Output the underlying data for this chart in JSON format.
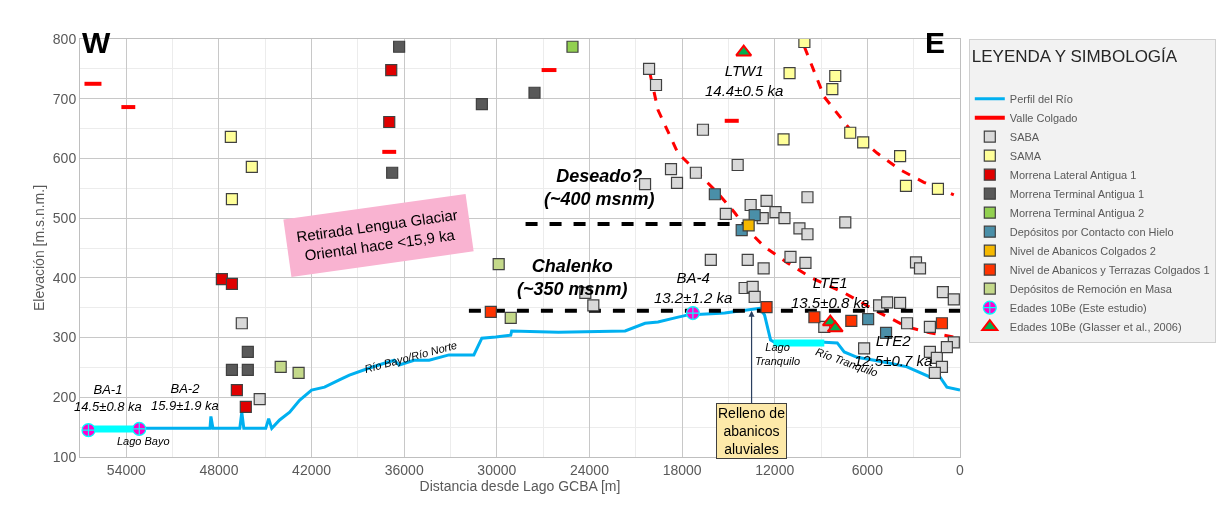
{
  "chart_data": {
    "type": "scatter",
    "xlabel": "Distancia desde Lago GCBA [m]",
    "ylabel": "Elevación [m.s.n.m.]",
    "legend_title": "LEYENDA Y SIMBOLOGÍA",
    "xlim": [
      57000,
      0
    ],
    "xticks": [
      54000,
      48000,
      42000,
      36000,
      30000,
      24000,
      18000,
      12000,
      6000,
      0
    ],
    "ylim": [
      100,
      800
    ],
    "yticks": [
      100,
      200,
      300,
      400,
      500,
      600,
      700,
      800
    ],
    "grid": true,
    "legend": "right",
    "series": [
      {
        "name": "Perfil del Río",
        "type": "line",
        "color": "#00b0f0",
        "marker": "none",
        "line_style": "solid",
        "x": [
          53160,
          48580,
          48520,
          48390,
          46650,
          46520,
          46390,
          44970,
          44780,
          44580,
          44070,
          43420,
          42780,
          42000,
          41160,
          40200,
          39550,
          38260,
          37290,
          36650,
          36330,
          35360,
          34390,
          33100,
          31490,
          30970,
          30070,
          29100,
          29040,
          26010,
          21690,
          20400,
          19560,
          18460,
          17620,
          15240,
          12980,
          12660,
          12270,
          12010,
          8790,
          7950,
          7500,
          6660,
          5560,
          4530,
          3430,
          1950,
          1300,
          850,
          0
        ],
        "values": [
          148,
          148,
          168,
          148,
          148,
          175,
          148,
          148,
          164,
          148,
          162,
          175,
          195,
          212,
          217,
          229,
          237,
          249,
          257,
          262,
          254,
          262,
          262,
          271,
          271,
          299,
          301,
          304,
          311,
          309,
          311,
          324,
          326,
          333,
          338,
          341,
          349,
          338,
          296,
          292,
          292,
          291,
          276,
          267,
          262,
          257,
          251,
          234,
          234,
          217,
          212
        ]
      },
      {
        "type": "line",
        "color": "#00ffff",
        "marker": "none",
        "line_style": "solid",
        "x": [
          56450,
          53160
        ],
        "values": [
          147,
          147
        ]
      },
      {
        "type": "line",
        "color": "#00ffff",
        "marker": "none",
        "line_style": "solid",
        "x": [
          12080,
          8790
        ],
        "values": [
          291,
          291
        ]
      },
      {
        "name": "Valle Colgado",
        "type": "line",
        "color": "#ff0000",
        "marker": "none",
        "line_style": "solid",
        "x": [
          56710,
          55610,
          null,
          54320,
          53420,
          null,
          37420,
          36520,
          null,
          27100,
          26140,
          null,
          15240,
          14330
        ],
        "values": [
          725,
          725,
          null,
          686,
          686,
          null,
          611,
          611,
          null,
          748,
          748,
          null,
          663,
          663
        ]
      },
      {
        "type": "line",
        "color": "#ff0000",
        "marker": "none",
        "line_style": "dashed",
        "x": [
          20070,
          19560,
          18270,
          16980,
          15690,
          14590,
          13750,
          12660,
          11170,
          9690,
          7500,
          5170,
          3430,
          1950,
          400
        ],
        "values": [
          741,
          681,
          609,
          576,
          542,
          509,
          480,
          452,
          425,
          401,
          375,
          341,
          318,
          308,
          301
        ]
      },
      {
        "type": "line",
        "color": "#ff0000",
        "marker": "none",
        "line_style": "dashed",
        "x": [
          10080,
          8790,
          7110,
          5370,
          3880,
          2340,
          400
        ],
        "values": [
          787,
          703,
          648,
          609,
          581,
          560,
          539
        ]
      },
      {
        "type": "line",
        "color": "#000000",
        "marker": "none",
        "line_style": "dashed",
        "x": [
          28140,
          13880
        ],
        "values": [
          490,
          490
        ]
      },
      {
        "type": "line",
        "color": "#000000",
        "marker": "none",
        "line_style": "dashed",
        "x": [
          31810,
          0
        ],
        "values": [
          345,
          345
        ]
      },
      {
        "name": "SABA",
        "color": "#d9d9d9",
        "marker": "square",
        "x": [
          46520,
          45360,
          20140,
          19690,
          16650,
          18720,
          17110,
          18330,
          14400,
          20400,
          13560,
          12530,
          15170,
          11950,
          11370,
          9880,
          7430,
          10400,
          9880,
          12780,
          16140,
          13750,
          12720,
          10980,
          10010,
          13950,
          13430,
          13300,
          24270,
          23750,
          2850,
          2590,
          1110,
          400,
          5240,
          4720,
          3880,
          8790,
          3430,
          1950,
          400,
          1950,
          1500,
          1170,
          1630,
          6210,
          850
        ],
        "values": [
          324,
          197,
          750,
          723,
          648,
          582,
          576,
          559,
          589,
          557,
          522,
          529,
          507,
          510,
          500,
          535,
          493,
          483,
          473,
          500,
          430,
          430,
          416,
          435,
          425,
          383,
          385,
          368,
          375,
          354,
          426,
          416,
          376,
          364,
          354,
          359,
          358,
          318,
          324,
          318,
          292,
          276,
          266,
          251,
          241,
          282,
          284
        ]
      },
      {
        "name": "SAMA",
        "color": "#ffff99",
        "marker": "square",
        "x": [
          47230,
          45870,
          47160,
          10080,
          11040,
          8080,
          8270,
          11430,
          7110,
          6270,
          3880,
          3500,
          1430
        ],
        "values": [
          636,
          586,
          532,
          795,
          743,
          738,
          716,
          632,
          643,
          627,
          604,
          554,
          549
        ]
      },
      {
        "name": "Morrena Lateral Antigua 1",
        "color": "#e00000",
        "marker": "square",
        "x": [
          36840,
          36970,
          47810,
          47160,
          46840,
          46260
        ],
        "values": [
          748,
          661,
          398,
          390,
          212,
          184
        ]
      },
      {
        "name": "Morrena Terminal Antigua 1",
        "color": "#595959",
        "marker": "square",
        "x": [
          36330,
          36780,
          46130,
          47160,
          46130,
          30970,
          27560
        ],
        "values": [
          787,
          576,
          276,
          246,
          246,
          691,
          710
        ]
      },
      {
        "name": "Morrena Terminal Antigua 2",
        "color": "#92d050",
        "marker": "square",
        "x": [
          25100
        ],
        "values": [
          787
        ]
      },
      {
        "name": "Depósitos por Contacto con Hielo",
        "color": "#4a8fa8",
        "marker": "square",
        "x": [
          15880,
          13300,
          14140,
          5950,
          4790
        ],
        "values": [
          540,
          505,
          480,
          331,
          308
        ]
      },
      {
        "name": "Nivel de Abanicos Colgados 2",
        "color": "#f5b800",
        "marker": "square",
        "x": [
          13690
        ],
        "values": [
          488
        ]
      },
      {
        "name": "Nivel de Abanicos y Terrazas Colgados 1",
        "color": "#ff3300",
        "marker": "square",
        "x": [
          30390,
          12530,
          9430,
          7040,
          1170
        ],
        "values": [
          343,
          351,
          334,
          328,
          324
        ]
      },
      {
        "name": "Depósitos de Remoción en Masa",
        "color": "#c4d98a",
        "marker": "square",
        "x": [
          44000,
          42840,
          29880,
          29100
        ],
        "values": [
          251,
          241,
          423,
          333
        ]
      },
      {
        "name": "Edades 10Be (Este estudio)",
        "color": "#ff00cc",
        "marker": "cross",
        "x": [
          56450,
          53160,
          17300
        ],
        "values": [
          145,
          147,
          341
        ]
      },
      {
        "name": "Edades 10Be (Glasser et al., 2006)",
        "color": "#ff0000",
        "marker": "triangle",
        "x": [
          14010,
          8400,
          8080
        ],
        "values": [
          778,
          326,
          316
        ]
      }
    ],
    "annotations": [
      "W",
      "E",
      "Retirada Lengua Glaciar\nOriental hace <15,9 ka",
      {
        "text": "Relleno de\nabanicos\naluviales",
        "x": 13500,
        "y": 345
      },
      "Deseado?\n(~400 msnm)",
      "Chalenko\n(~350 msnm)",
      {
        "text": "BA-1\n14.5±0.8 ka",
        "x": 56450,
        "y": 145
      },
      {
        "text": "BA-2\n15.9±1.9 ka",
        "x": 53160,
        "y": 147
      },
      {
        "text": "BA-4\n13.2±1.2 ka",
        "x": 17300,
        "y": 341
      },
      {
        "text": "LTW1\n14.4±0.5 ka",
        "x": 14010,
        "y": 778
      },
      {
        "text": "LTE1\n13.5±0.8 ka",
        "x": 8400,
        "y": 326
      },
      {
        "text": "LTE2\n12.5±0.7 ka",
        "x": 8080,
        "y": 316
      },
      "Lago Bayo",
      "Lago\nTranquilo",
      "Río Bayo/Río Norte",
      "Río Tranquilo"
    ]
  }
}
